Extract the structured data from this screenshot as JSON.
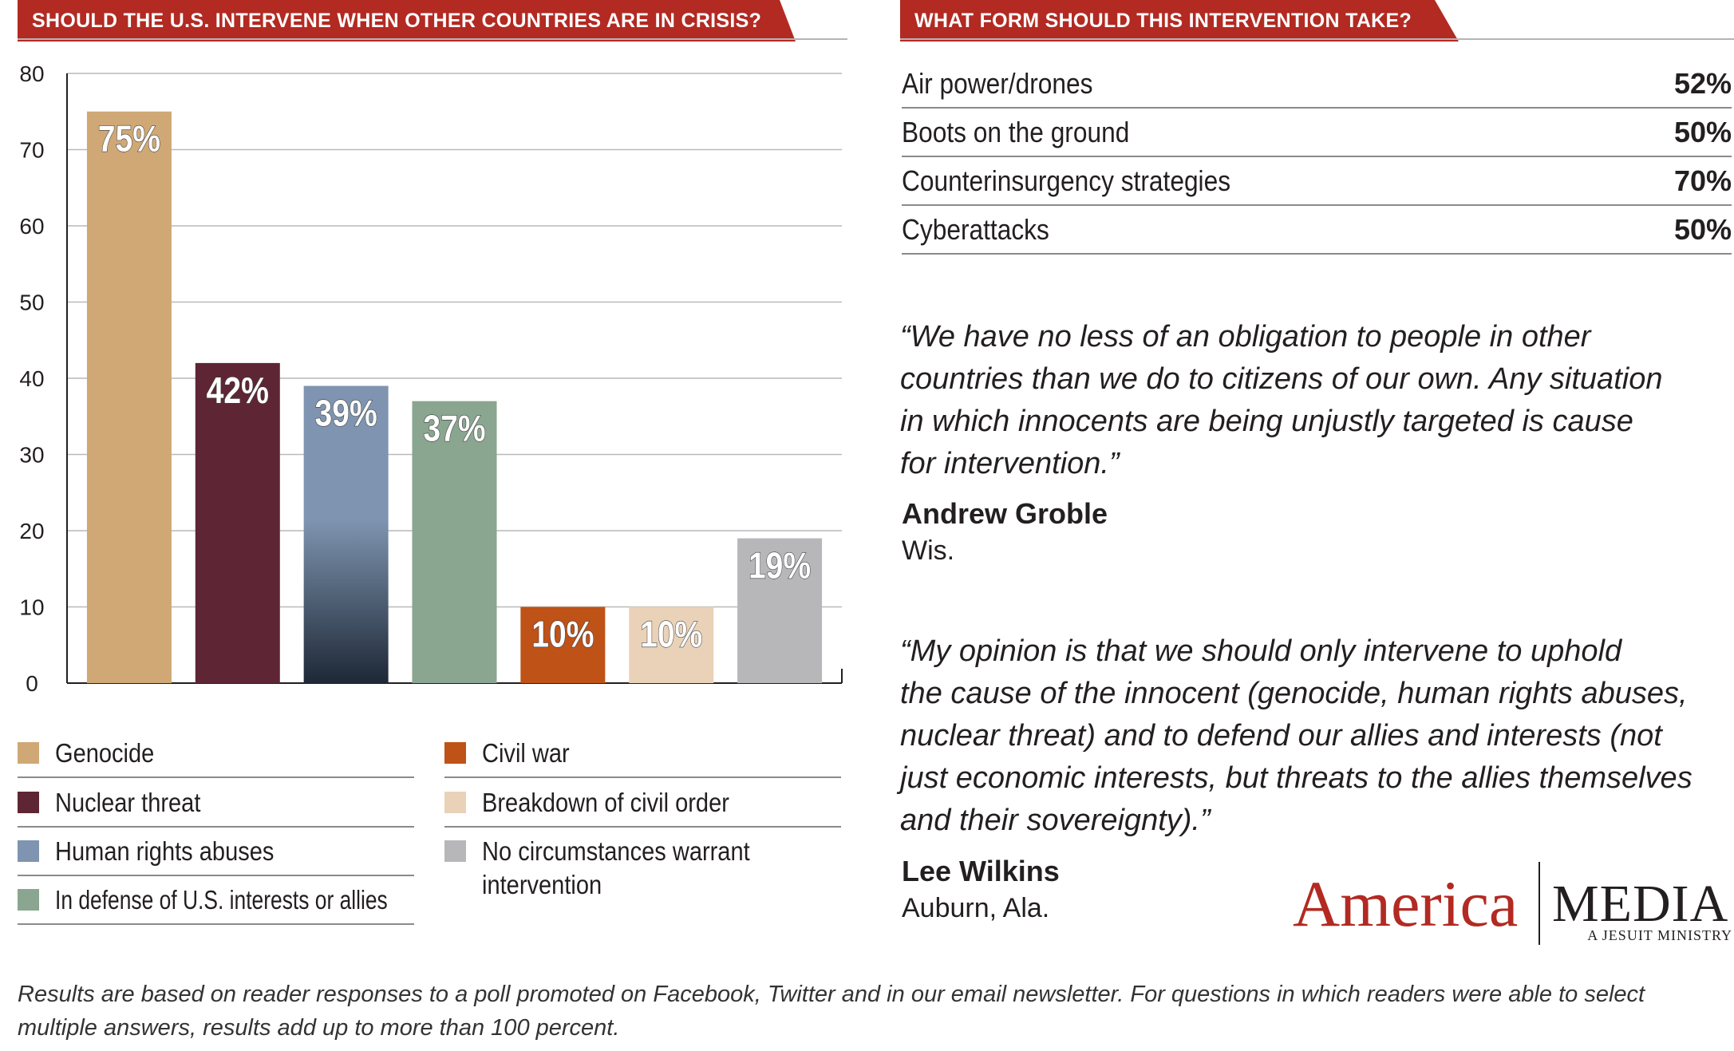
{
  "left_header": "SHOULD THE U.S. INTERVENE  WHEN OTHER COUNTRIES ARE IN CRISIS?",
  "right_header": "WHAT FORM SHOULD THIS INTERVENTION TAKE?",
  "chart_data": {
    "type": "bar",
    "categories": [
      "Genocide",
      "Nuclear threat",
      "Human rights abuses",
      "In defense of U.S. interests or allies",
      "Civil war",
      "Breakdown of civil order",
      "No circumstances warrant intervention"
    ],
    "values": [
      75,
      42,
      39,
      37,
      10,
      10,
      19
    ],
    "data_labels": [
      "75%",
      "42%",
      "39%",
      "37%",
      "10%",
      "10%",
      "19%"
    ],
    "colors": [
      "#cfa876",
      "#5e2634",
      "#7e94b0",
      "#8aa590",
      "#bf5217",
      "#ead2b8",
      "#b7b7ba"
    ],
    "ylim": [
      0,
      80
    ],
    "yticks": [
      0,
      10,
      20,
      30,
      40,
      50,
      60,
      70,
      80
    ],
    "grid": true
  },
  "legend": [
    {
      "label": "Genocide",
      "color": "#cfa876"
    },
    {
      "label": "Nuclear threat",
      "color": "#5e2634"
    },
    {
      "label": "Human rights abuses",
      "color": "#7e94b0"
    },
    {
      "label": "In defense of U.S. interests or allies",
      "color": "#8aa590"
    },
    {
      "label": "Civil war",
      "color": "#bf5217"
    },
    {
      "label": "Breakdown of civil order",
      "color": "#ead2b8"
    },
    {
      "label_line1": "No circumstances warrant",
      "label_line2": "intervention",
      "color": "#b7b7ba"
    }
  ],
  "intervention_forms": [
    {
      "label": "Air power/drones",
      "value": "52%"
    },
    {
      "label": "Boots on the ground",
      "value": "50%"
    },
    {
      "label": "Counterinsurgency strategies",
      "value": "70%"
    },
    {
      "label": "Cyberattacks",
      "value": "50%"
    }
  ],
  "quotes": [
    {
      "lines": [
        "“We have no less of an obligation to people in other",
        "countries than we do to citizens of our own. Any situation",
        "in which innocents are being unjustly targeted is cause",
        "for intervention.”"
      ],
      "author": "Andrew Groble",
      "location": "Wis."
    },
    {
      "lines": [
        "“My opinion is that we should only intervene to uphold",
        "the cause of the innocent (genocide, human rights abuses,",
        "nuclear threat) and to defend our allies and interests (not",
        "just economic interests, but threats to the allies themselves",
        "and their sovereignty).”"
      ],
      "author": "Lee Wilkins",
      "location": "Auburn, Ala."
    }
  ],
  "logo": {
    "america": "America",
    "media": "MEDIA",
    "tagline": "A JESUIT MINISTRY",
    "brand_color": "#b22a22"
  },
  "footnote": "Results are based on reader responses to a poll promoted on Facebook, Twitter and in our email newsletter. For questions in which readers were able to select multiple answers, results add up to more than 100 percent."
}
